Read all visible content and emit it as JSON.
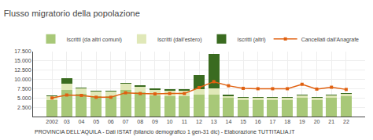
{
  "chart_data": {
    "type": "bar",
    "title": "Flusso migratorio della popolazione",
    "subtitle": "PROVINCIA DELL'AQUILA - Dati ISTAT (bilancio demografico 1 gen-31 dic) - Elaborazione TUTTITALIA.IT",
    "categories": [
      "2002",
      "03",
      "04",
      "05",
      "06",
      "07",
      "08",
      "09",
      "10",
      "11",
      "12",
      "13",
      "14",
      "15",
      "16",
      "17",
      "18",
      "19",
      "20",
      "21",
      "22"
    ],
    "series": [
      {
        "name": "Iscritti (da altri comuni)",
        "color": "#a8c878",
        "type": "bar",
        "values": [
          4500,
          7200,
          6200,
          5500,
          5500,
          7100,
          6500,
          5600,
          5500,
          5500,
          5800,
          6000,
          5000,
          4500,
          4500,
          4500,
          4500,
          5000,
          4500,
          5000,
          5500
        ]
      },
      {
        "name": "Iscritti (dall'estero)",
        "color": "#e0e8b8",
        "type": "bar",
        "values": [
          1000,
          1600,
          1400,
          1300,
          1300,
          1800,
          1600,
          1600,
          1500,
          1600,
          1600,
          1600,
          600,
          600,
          600,
          600,
          600,
          700,
          600,
          700,
          700
        ]
      },
      {
        "name": "Iscritti (altri)",
        "color": "#3a6b20",
        "type": "bar",
        "values": [
          100,
          1500,
          100,
          100,
          100,
          100,
          400,
          200,
          200,
          300,
          3700,
          9200,
          100,
          100,
          100,
          100,
          100,
          100,
          100,
          100,
          100
        ]
      },
      {
        "name": "Cancellati dall'Anagrafe",
        "color": "#e06010",
        "type": "line",
        "marker": "square",
        "values": [
          5000,
          5800,
          5700,
          5200,
          5200,
          6400,
          6200,
          6100,
          6200,
          6200,
          7800,
          9400,
          8300,
          7600,
          7500,
          7500,
          7500,
          8700,
          7400,
          7900,
          7300
        ]
      }
    ],
    "stacked": true,
    "ylim": [
      0,
      17500
    ],
    "yticks": [
      {
        "value": 2500,
        "label": "2.500"
      },
      {
        "value": 5000,
        "label": "5.000"
      },
      {
        "value": 7500,
        "label": "7.500"
      },
      {
        "value": 10000,
        "label": "10.000"
      },
      {
        "value": 12500,
        "label": "12.500"
      },
      {
        "value": 15000,
        "label": "15.000"
      },
      {
        "value": 17500,
        "label": "17.500"
      }
    ],
    "grid": true,
    "legend": "top"
  }
}
